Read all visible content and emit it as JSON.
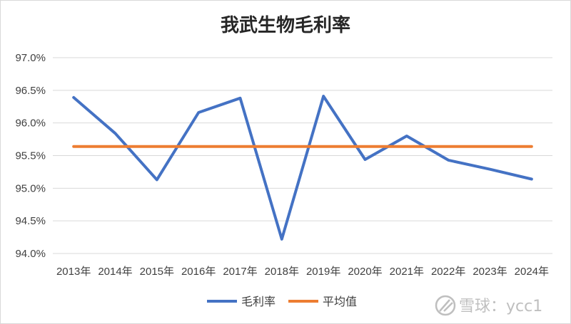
{
  "chart_data": {
    "type": "line",
    "title": "我武生物毛利率",
    "categories": [
      "2013年",
      "2014年",
      "2015年",
      "2016年",
      "2017年",
      "2018年",
      "2019年",
      "2020年",
      "2021年",
      "2022年",
      "2023年",
      "2024年"
    ],
    "y_tick_labels": [
      "94.0%",
      "94.5%",
      "95.0%",
      "95.5%",
      "96.0%",
      "96.5%",
      "97.0%"
    ],
    "ylim": [
      94.0,
      97.0
    ],
    "y_step": 0.5,
    "grid": true,
    "legend_position": "bottom",
    "series": [
      {
        "name": "毛利率",
        "color": "#4472c4",
        "values": [
          96.39,
          95.84,
          95.13,
          96.16,
          96.38,
          94.22,
          96.41,
          95.44,
          95.8,
          95.43,
          95.29,
          95.14
        ]
      },
      {
        "name": "平均值",
        "color": "#ed7d31",
        "values": [
          95.64,
          95.64,
          95.64,
          95.64,
          95.64,
          95.64,
          95.64,
          95.64,
          95.64,
          95.64,
          95.64,
          95.64
        ]
      }
    ]
  },
  "watermark": {
    "text": "雪球：ycc1",
    "icon": "snowball-logo-icon"
  }
}
